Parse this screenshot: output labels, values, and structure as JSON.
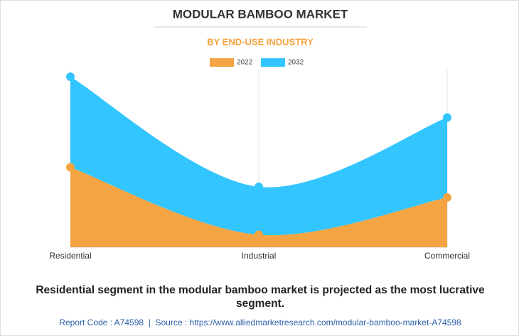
{
  "chart_data": {
    "type": "stacked-area",
    "title": "MODULAR BAMBOO MARKET",
    "subtitle": "BY END-USE INDUSTRY",
    "categories": [
      "Residential",
      "Industrial",
      "Commercial"
    ],
    "series": [
      {
        "name": "2022",
        "color": "#f4a442",
        "values": [
          45,
          7,
          28
        ]
      },
      {
        "name": "2032",
        "color": "#33c5ff",
        "values": [
          51,
          27,
          45
        ]
      }
    ],
    "ylim": [
      0,
      100
    ],
    "caption": "Residential segment in the modular bamboo market is projected as the most lucrative segment.",
    "source": "Report Code : A74598  |  Source : https://www.alliedmarketresearch.com/modular-bamboo-market-A74598"
  }
}
